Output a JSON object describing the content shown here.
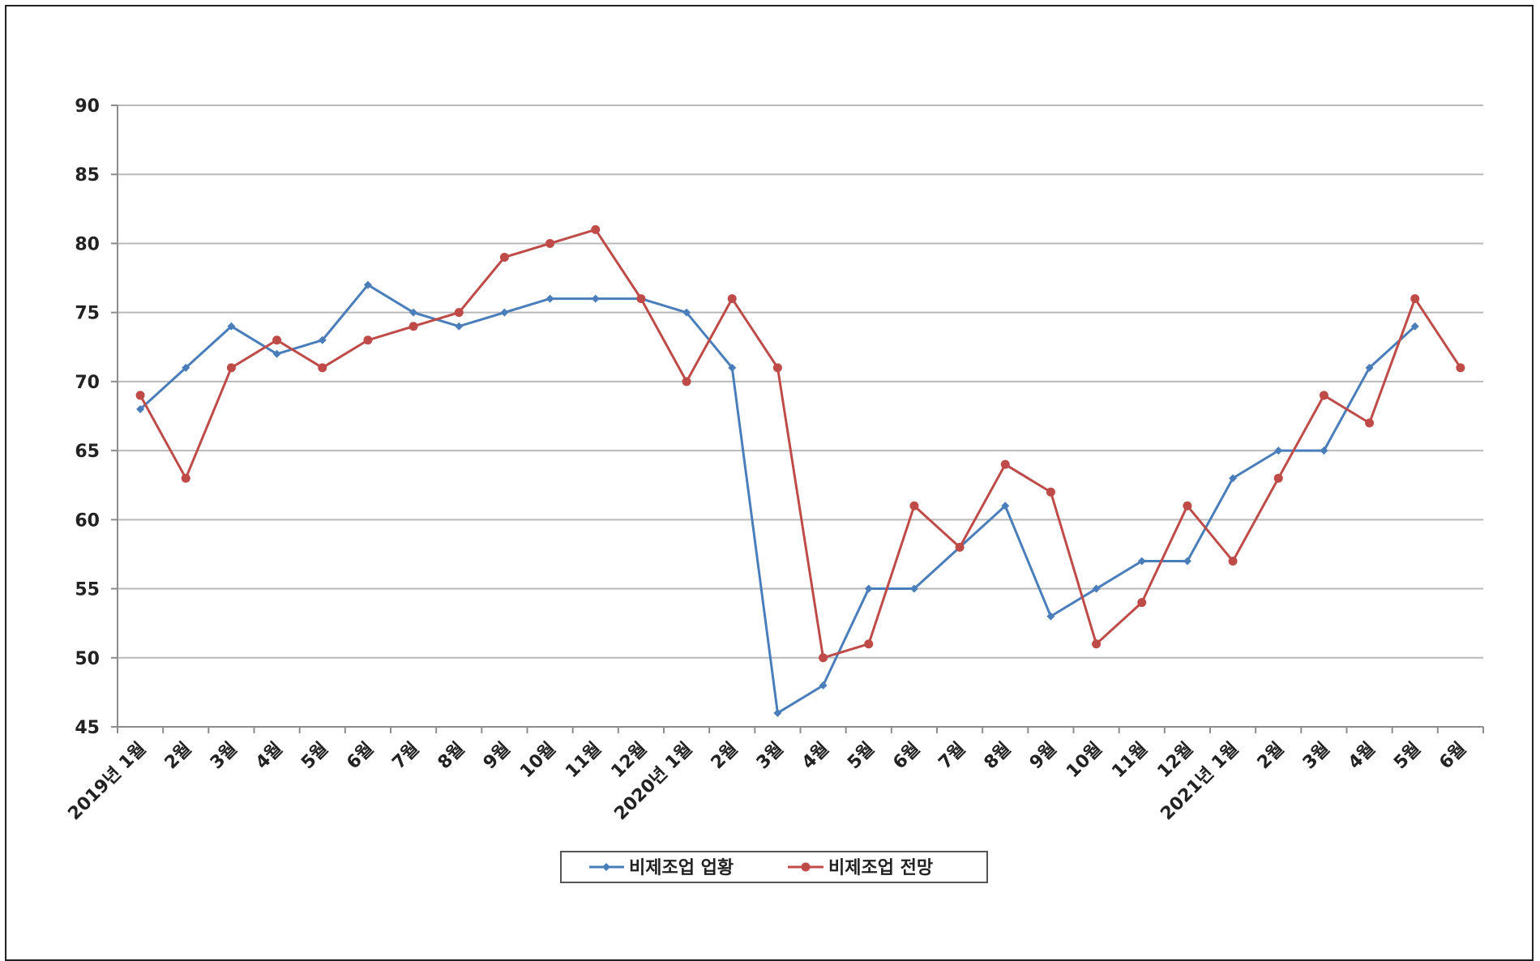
{
  "chart_data": {
    "type": "line",
    "categories": [
      "2019년 1월",
      "2월",
      "3월",
      "4월",
      "5월",
      "6월",
      "7월",
      "8월",
      "9월",
      "10월",
      "11월",
      "12월",
      "2020년 1월",
      "2월",
      "3월",
      "4월",
      "5월",
      "6월",
      "7월",
      "8월",
      "9월",
      "10월",
      "11월",
      "12월",
      "2021년 1월",
      "2월",
      "3월",
      "4월",
      "5월",
      "6월"
    ],
    "series": [
      {
        "name": "비제조업 업황",
        "color": "#4a7ebb",
        "marker": "diamond",
        "values": [
          68,
          71,
          74,
          72,
          73,
          77,
          75,
          74,
          75,
          76,
          76,
          76,
          75,
          71,
          46,
          48,
          55,
          55,
          58,
          61,
          53,
          55,
          57,
          57,
          63,
          65,
          65,
          71,
          74,
          null
        ]
      },
      {
        "name": "비제조업 전망",
        "color": "#be4b48",
        "marker": "circle",
        "values": [
          69,
          63,
          71,
          73,
          71,
          73,
          74,
          75,
          79,
          80,
          81,
          76,
          70,
          76,
          71,
          50,
          51,
          61,
          58,
          64,
          62,
          51,
          54,
          61,
          57,
          63,
          69,
          67,
          76,
          71
        ]
      }
    ],
    "ylim": [
      45,
      90
    ],
    "yticks": [
      45,
      50,
      55,
      60,
      65,
      70,
      75,
      80,
      85,
      90
    ],
    "grid": true,
    "legend_position": "bottom"
  }
}
